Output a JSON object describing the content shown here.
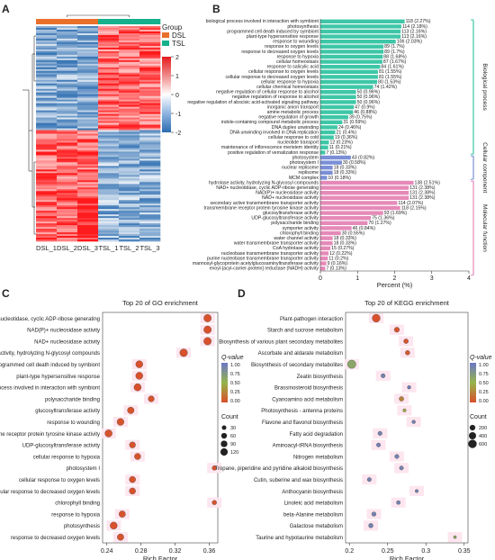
{
  "panel_letters": [
    "A",
    "B",
    "C",
    "D"
  ],
  "colors": {
    "group_dsl": "#e8702a",
    "group_tsl": "#16b08c",
    "heat_high": "#e41a1c",
    "heat_mid": "#ffffff",
    "heat_low": "#2b6cb0",
    "bp": "#3ec7a7",
    "cc": "#7b8fd6",
    "mf": "#e58ab8",
    "q_low": "#6b76c8",
    "q_mid": "#95b54a",
    "q_high": "#d94f2b",
    "dot_bg": "#fde6ef"
  },
  "chart_data": [
    {
      "type": "heatmap",
      "panel": "A",
      "columns": [
        "DSL_1",
        "DSL_2",
        "DSL_3",
        "TSL_1",
        "TSL_2",
        "TSL_3"
      ],
      "legend_title": "Group",
      "groups": [
        "DSL",
        "TSL"
      ],
      "scale_ticks": [
        2,
        1,
        0,
        -1,
        -2
      ]
    },
    {
      "type": "bar",
      "panel": "B",
      "xlabel": "Percent (%)",
      "xlim": [
        0,
        4
      ],
      "xticks": [
        0,
        1,
        2,
        3,
        4
      ],
      "categories_groups": [
        "Biological process",
        "Cellular component",
        "Molecular function"
      ],
      "bars": [
        {
          "label": "biological process involved in interaction with symbiont",
          "v": 2.27,
          "ann": "118 (2.27%)",
          "g": 0
        },
        {
          "label": "photosynthesis",
          "v": 2.18,
          "ann": "114 (2.18%)",
          "g": 0
        },
        {
          "label": "programmed cell death induced by symbiont",
          "v": 2.16,
          "ann": "113 (2.16%)",
          "g": 0
        },
        {
          "label": "plant-type hypersensitive response",
          "v": 2.16,
          "ann": "113 (2.16%)",
          "g": 0
        },
        {
          "label": "response to wounding",
          "v": 2.03,
          "ann": "106 (2.03%)",
          "g": 0
        },
        {
          "label": "response to oxygen levels",
          "v": 1.7,
          "ann": "89 (1.7%)",
          "g": 0
        },
        {
          "label": "response to decreased oxygen levels",
          "v": 1.7,
          "ann": "89 (1.7%)",
          "g": 0
        },
        {
          "label": "response to hypoxia",
          "v": 1.68,
          "ann": "88 (1.68%)",
          "g": 0
        },
        {
          "label": "cellular homeostasis",
          "v": 1.67,
          "ann": "87 (1.67%)",
          "g": 0
        },
        {
          "label": "response to salicylic acid",
          "v": 1.61,
          "ann": "84 (1.61%)",
          "g": 0
        },
        {
          "label": "cellular response to oxygen levels",
          "v": 1.55,
          "ann": "81 (1.55%)",
          "g": 0
        },
        {
          "label": "cellular response to decreased oxygen levels",
          "v": 1.55,
          "ann": "81 (1.55%)",
          "g": 0
        },
        {
          "label": "cellular response to hypoxia",
          "v": 1.53,
          "ann": "80 (1.53%)",
          "g": 0
        },
        {
          "label": "cellular chemical homeostasis",
          "v": 1.42,
          "ann": "74 (1.42%)",
          "g": 0
        },
        {
          "label": "negative regulation of cellular response to alcohol",
          "v": 0.96,
          "ann": "50 (0.96%)",
          "g": 0
        },
        {
          "label": "negative regulation of response to alcohol",
          "v": 0.96,
          "ann": "50 (0.96%)",
          "g": 0
        },
        {
          "label": "negative regulation of abscisic acid-activated signaling pathway",
          "v": 0.96,
          "ann": "50 (0.96%)",
          "g": 0
        },
        {
          "label": "inorganic anion transport",
          "v": 0.9,
          "ann": "47 (0.9%)",
          "g": 0
        },
        {
          "label": "amine metabolic process",
          "v": 0.88,
          "ann": "46 (0.88%)",
          "g": 0
        },
        {
          "label": "negative regulation of growth",
          "v": 0.75,
          "ann": "39 (0.75%)",
          "g": 0
        },
        {
          "label": "indole-containing compound metabolic process",
          "v": 0.59,
          "ann": "31 (0.59%)",
          "g": 0
        },
        {
          "label": "DNA duplex unwinding",
          "v": 0.46,
          "ann": "24 (0.46%)",
          "g": 0
        },
        {
          "label": "DNA unwinding involved in DNA replication",
          "v": 0.4,
          "ann": "21 (0.4%)",
          "g": 0
        },
        {
          "label": "cellular response to cold",
          "v": 0.36,
          "ann": "19 (0.36%)",
          "g": 0
        },
        {
          "label": "nucleotide transport",
          "v": 0.23,
          "ann": "12 (0.23%)",
          "g": 0
        },
        {
          "label": "maintenance of inflorescence meristem identity",
          "v": 0.21,
          "ann": "11 (0.21%)",
          "g": 0
        },
        {
          "label": "positive regulation of vernalization response",
          "v": 0.13,
          "ann": "7 (0.13%)",
          "g": 0
        },
        {
          "label": "photosystem",
          "v": 0.82,
          "ann": "43 (0.82%)",
          "g": 1
        },
        {
          "label": "photosystem I",
          "v": 0.58,
          "ann": "30 (0.58%)",
          "g": 1
        },
        {
          "label": "nuclear replisome",
          "v": 0.33,
          "ann": "18 (0.33%)",
          "g": 1
        },
        {
          "label": "replisome",
          "v": 0.33,
          "ann": "18 (0.33%)",
          "g": 1
        },
        {
          "label": "MCM complex",
          "v": 0.18,
          "ann": "10 (0.18%)",
          "g": 1
        },
        {
          "label": "hydrolase activity, hydrolyzing N-glycosyl compounds",
          "v": 2.51,
          "ann": "138 (2.51%)",
          "g": 2
        },
        {
          "label": "NAD+ nucleotidase, cyclic ADP-ribose generating",
          "v": 2.38,
          "ann": "131 (2.38%)",
          "g": 2
        },
        {
          "label": "NAD(P)+ nucleosidase activity",
          "v": 2.38,
          "ann": "131 (2.38%)",
          "g": 2
        },
        {
          "label": "NAD+ nucleosidase activity",
          "v": 2.38,
          "ann": "131 (2.38%)",
          "g": 2
        },
        {
          "label": "secondary active transmembrane transporter activity",
          "v": 2.07,
          "ann": "114 (2.07%)",
          "g": 2
        },
        {
          "label": "transmembrane receptor protein tyrosine kinase activity",
          "v": 2.15,
          "ann": "118 (2.15%)",
          "g": 2
        },
        {
          "label": "glucosyltransferase activity",
          "v": 1.69,
          "ann": "93 (1.69%)",
          "g": 2
        },
        {
          "label": "UDP-glucosyltransferase activity",
          "v": 1.36,
          "ann": "75 (1.36%)",
          "g": 2
        },
        {
          "label": "polysaccharide binding",
          "v": 1.27,
          "ann": "70 (1.27%)",
          "g": 2
        },
        {
          "label": "symporter activity",
          "v": 0.84,
          "ann": "46 (0.84%)",
          "g": 2
        },
        {
          "label": "chlorophyll binding",
          "v": 0.55,
          "ann": "30 (0.55%)",
          "g": 2
        },
        {
          "label": "water channel activity",
          "v": 0.33,
          "ann": "18 (0.33%)",
          "g": 2
        },
        {
          "label": "water transmembrane transporter activity",
          "v": 0.33,
          "ann": "18 (0.33%)",
          "g": 2
        },
        {
          "label": "CoA hydrolase activity",
          "v": 0.27,
          "ann": "15 (0.27%)",
          "g": 2
        },
        {
          "label": "nucleobase transmembrane transporter activity",
          "v": 0.22,
          "ann": "12 (0.22%)",
          "g": 2
        },
        {
          "label": "purine nucleobase transmembrane transporter activity",
          "v": 0.2,
          "ann": "11 (0.2%)",
          "g": 2
        },
        {
          "label": "mannosyl-glycoprotein acetylglucosaminyltransferase activity",
          "v": 0.16,
          "ann": "9 (0.16%)",
          "g": 2
        },
        {
          "label": "enoyl-[acyl-carrier-protein] reductase (NADH) activity",
          "v": 0.13,
          "ann": "7 (0.13%)",
          "g": 2
        }
      ]
    },
    {
      "type": "scatter",
      "panel": "C",
      "title": "Top 20 of GO enrichment",
      "xlabel": "Rich Factor",
      "xlim": [
        0.235,
        0.37
      ],
      "xticks": [
        0.24,
        0.28,
        0.32,
        0.36
      ],
      "color_legend_title": "Q-value",
      "color_ticks": [
        "1.00",
        "0.75",
        "0.50",
        "0.25",
        "0.00"
      ],
      "size_legend_title": "Count",
      "size_ticks": [
        30,
        60,
        90,
        120
      ],
      "points": [
        {
          "term": "NAD+ nucleotidase, cyclic ADP-ribose generating",
          "x": 0.358,
          "count": 131,
          "q": 0.01
        },
        {
          "term": "NAD(P)+ nucleosidase activity",
          "x": 0.358,
          "count": 131,
          "q": 0.01
        },
        {
          "term": "NAD+ nucleosidase activity",
          "x": 0.358,
          "count": 131,
          "q": 0.01
        },
        {
          "term": "hydrolase activity, hydrolyzing N-glycosyl compounds",
          "x": 0.33,
          "count": 138,
          "q": 0.01
        },
        {
          "term": "programmed cell death induced by symbiont",
          "x": 0.278,
          "count": 113,
          "q": 0.01
        },
        {
          "term": "plant-type hypersensitive response",
          "x": 0.278,
          "count": 113,
          "q": 0.01
        },
        {
          "term": "biological process involved in interaction with symbiont",
          "x": 0.276,
          "count": 118,
          "q": 0.01
        },
        {
          "term": "polysaccharide binding",
          "x": 0.292,
          "count": 70,
          "q": 0.02
        },
        {
          "term": "glucosyltransferase activity",
          "x": 0.268,
          "count": 93,
          "q": 0.02
        },
        {
          "term": "response to wounding",
          "x": 0.256,
          "count": 106,
          "q": 0.02
        },
        {
          "term": "transmembrane receptor protein tyrosine kinase activity",
          "x": 0.242,
          "count": 118,
          "q": 0.02
        },
        {
          "term": "UDP-glucosyltransferase activity",
          "x": 0.27,
          "count": 75,
          "q": 0.02
        },
        {
          "term": "cellular response to hypoxia",
          "x": 0.276,
          "count": 80,
          "q": 0.02
        },
        {
          "term": "photosystem I",
          "x": 0.366,
          "count": 30,
          "q": 0.03
        },
        {
          "term": "cellular response to oxygen levels",
          "x": 0.27,
          "count": 81,
          "q": 0.02
        },
        {
          "term": "cellular response to decreased oxygen levels",
          "x": 0.27,
          "count": 81,
          "q": 0.02
        },
        {
          "term": "chlorophyll binding",
          "x": 0.366,
          "count": 30,
          "q": 0.03
        },
        {
          "term": "response to hypoxia",
          "x": 0.258,
          "count": 88,
          "q": 0.02
        },
        {
          "term": "photosynthesis",
          "x": 0.248,
          "count": 114,
          "q": 0.01
        },
        {
          "term": "response to decreased oxygen levels",
          "x": 0.256,
          "count": 89,
          "q": 0.02
        }
      ]
    },
    {
      "type": "scatter",
      "panel": "D",
      "title": "Top 20 of KEGG enrichment",
      "xlabel": "Rich Factor",
      "xlim": [
        0.195,
        0.355
      ],
      "xticks": [
        0.2,
        0.25,
        0.3,
        0.35
      ],
      "color_legend_title": "Q-value",
      "color_ticks": [
        "1.00",
        "0.75",
        "0.50",
        "0.25",
        "0.00"
      ],
      "size_legend_title": "Count",
      "size_ticks": [
        200,
        400,
        600
      ],
      "points": [
        {
          "term": "Plant-pathogen interaction",
          "x": 0.235,
          "count": 520,
          "q": 0.01
        },
        {
          "term": "Starch and sucrose metabolism",
          "x": 0.262,
          "count": 150,
          "q": 0.03
        },
        {
          "term": "Biosynthesis of various plant secondary metabolites",
          "x": 0.274,
          "count": 110,
          "q": 0.03
        },
        {
          "term": "Ascorbate and aldarate metabolism",
          "x": 0.276,
          "count": 100,
          "q": 0.05
        },
        {
          "term": "Biosynthesis of secondary metabolites",
          "x": 0.203,
          "count": 600,
          "q": 0.62
        },
        {
          "term": "Zeatin biosynthesis",
          "x": 0.244,
          "count": 80,
          "q": 0.9
        },
        {
          "term": "Brassinosteroid biosynthesis",
          "x": 0.278,
          "count": 40,
          "q": 0.92
        },
        {
          "term": "Cyanoamino acid metabolism",
          "x": 0.268,
          "count": 110,
          "q": 0.25
        },
        {
          "term": "Photosynthesis - antenna proteins",
          "x": 0.272,
          "count": 30,
          "q": 0.45
        },
        {
          "term": "Flavone and flavonol biosynthesis",
          "x": 0.284,
          "count": 40,
          "q": 0.9
        },
        {
          "term": "Fatty acid degradation",
          "x": 0.24,
          "count": 80,
          "q": 0.9
        },
        {
          "term": "Aminoacyl-tRNA biosynthesis",
          "x": 0.238,
          "count": 70,
          "q": 0.92
        },
        {
          "term": "Nitrogen metabolism",
          "x": 0.262,
          "count": 80,
          "q": 0.9
        },
        {
          "term": "Tropane, piperidine and pyridine alkaloid biosynthesis",
          "x": 0.268,
          "count": 70,
          "q": 0.9
        },
        {
          "term": "Cutin, suberine and wax biosynthesis",
          "x": 0.226,
          "count": 70,
          "q": 0.9
        },
        {
          "term": "Anthocyanin biosynthesis",
          "x": 0.288,
          "count": 30,
          "q": 0.9
        },
        {
          "term": "Linoleic acid metabolism",
          "x": 0.264,
          "count": 60,
          "q": 0.9
        },
        {
          "term": "beta-Alanine metabolism",
          "x": 0.232,
          "count": 90,
          "q": 0.9
        },
        {
          "term": "Galactose metabolism",
          "x": 0.228,
          "count": 100,
          "q": 0.9
        },
        {
          "term": "Taurine and hypotaurine metabolism",
          "x": 0.338,
          "count": 20,
          "q": 0.6
        }
      ]
    }
  ]
}
